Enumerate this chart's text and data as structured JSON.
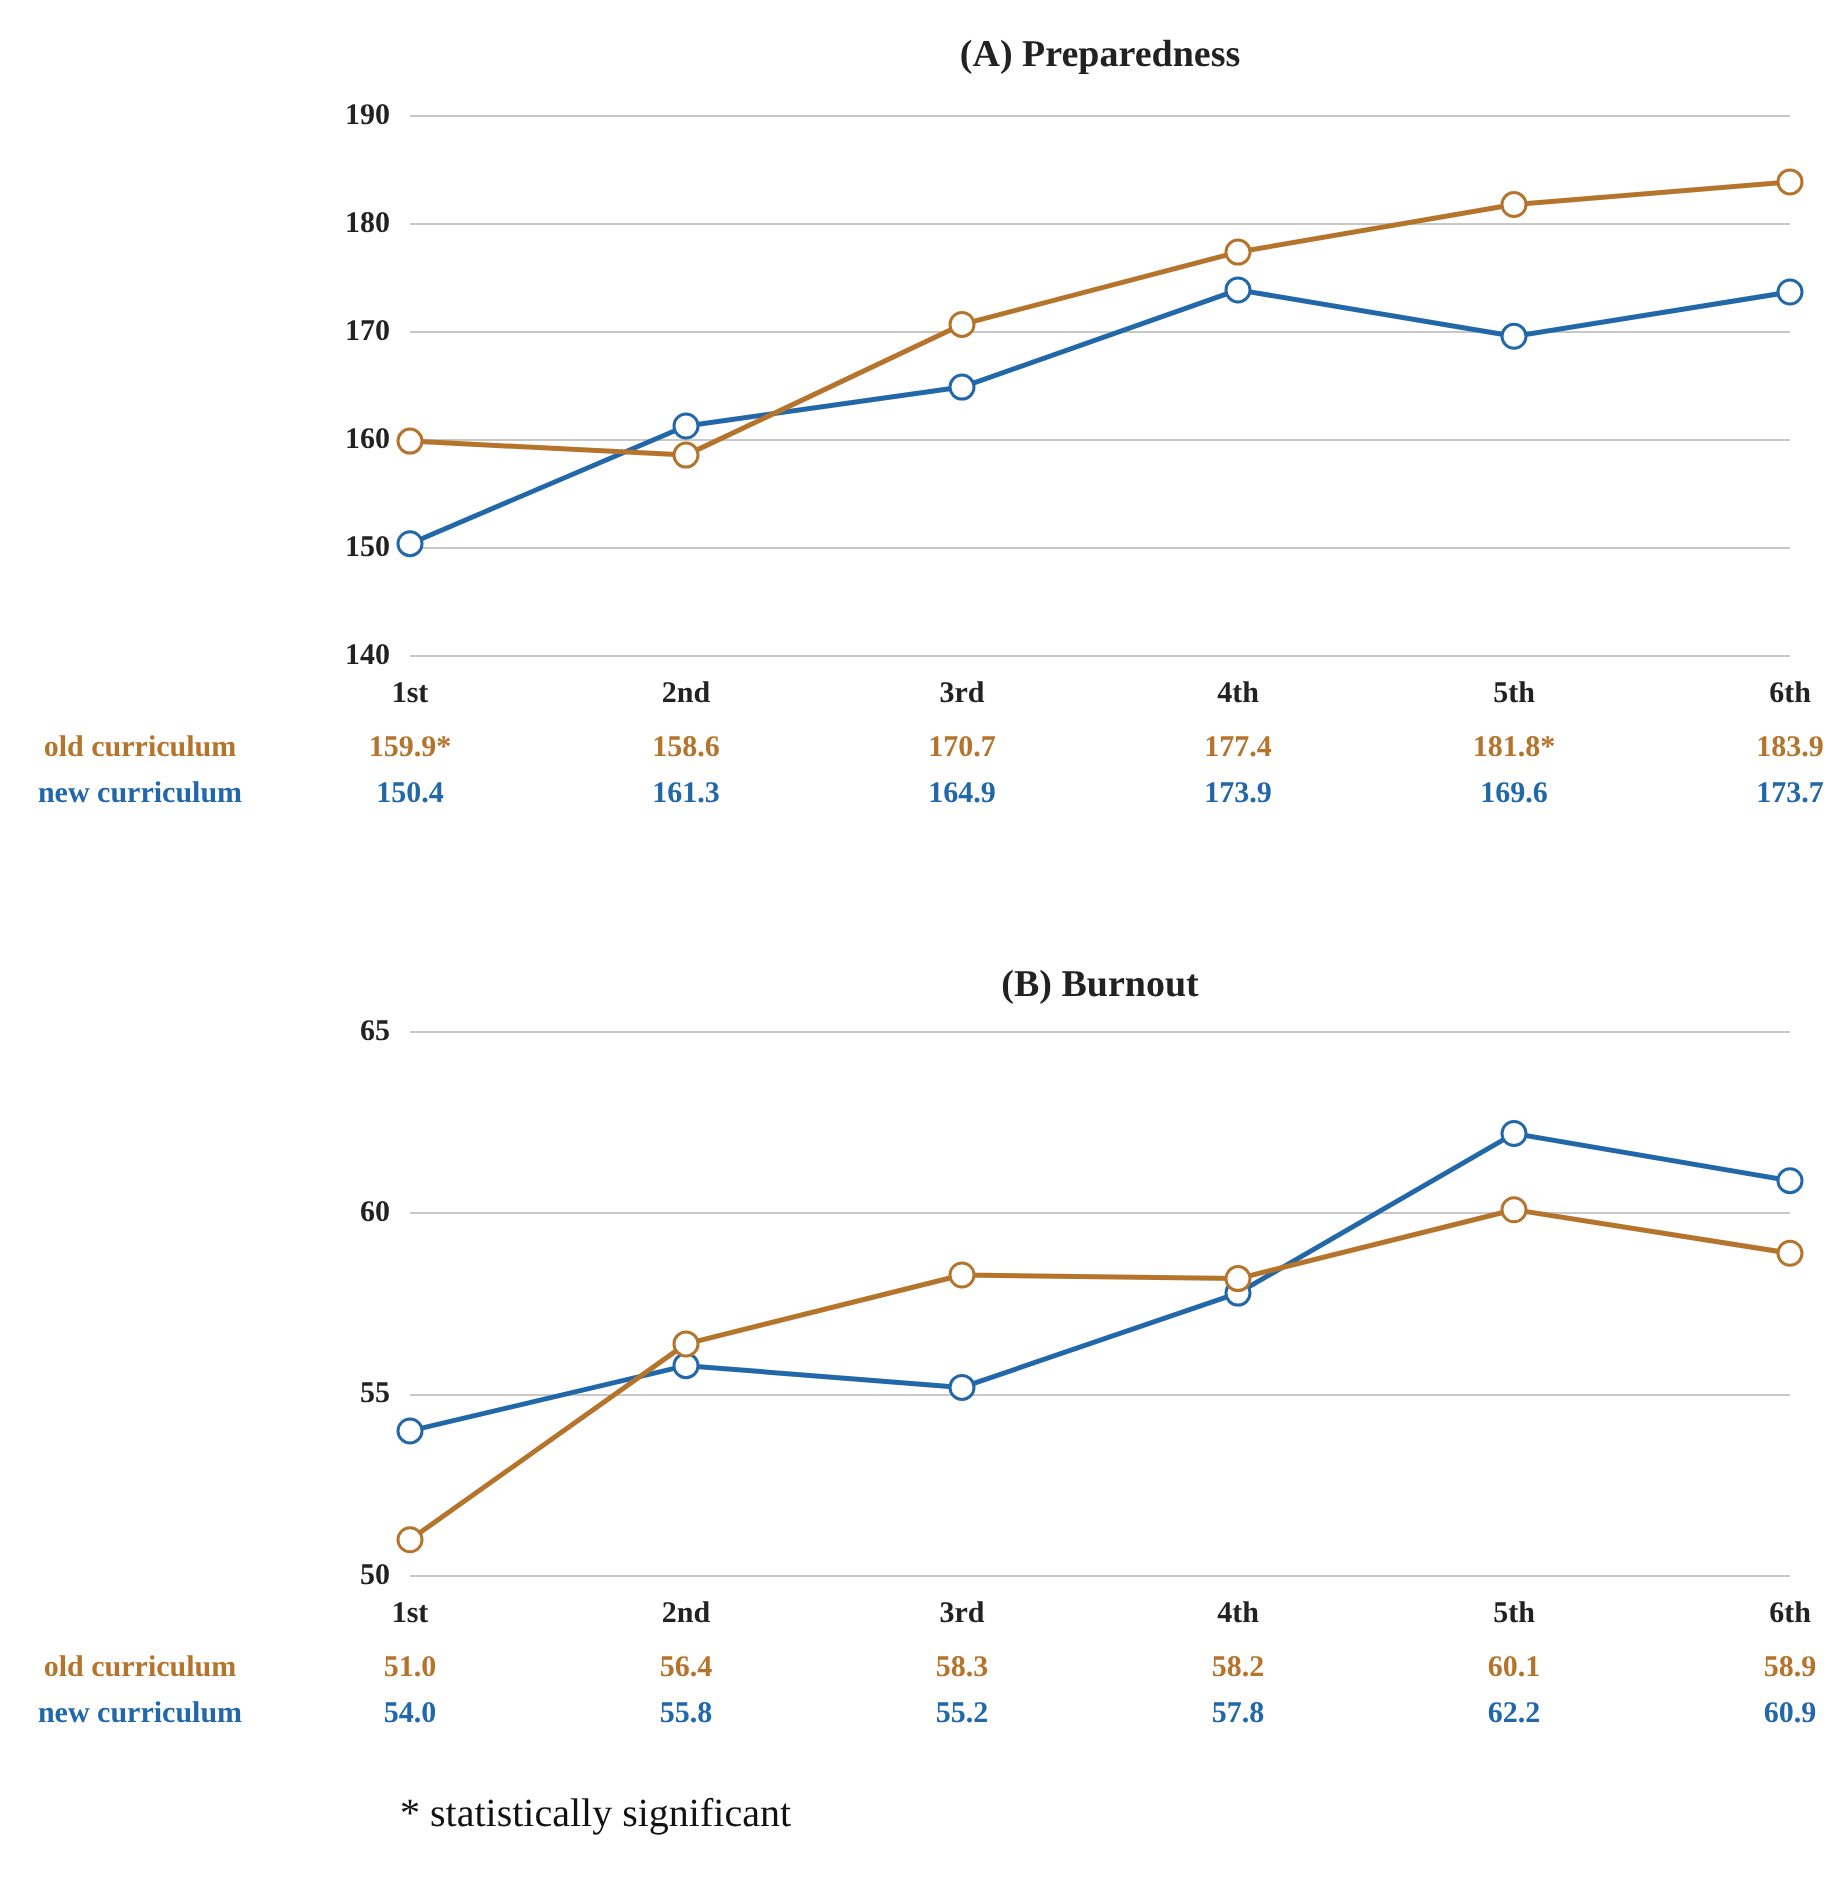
{
  "chart_data": [
    {
      "type": "line",
      "title": "(A) Preparedness",
      "categories": [
        "1st",
        "2nd",
        "3rd",
        "4th",
        "5th",
        "6th"
      ],
      "ylim": [
        140,
        190
      ],
      "yticks": [
        140,
        150,
        160,
        170,
        180,
        190
      ],
      "grid": "y",
      "marker": "circle",
      "series": [
        {
          "name": "old curriculum",
          "color": "#b5742c",
          "values": [
            159.9,
            158.6,
            170.7,
            177.4,
            181.8,
            183.9
          ],
          "value_labels": [
            "159.9*",
            "158.6",
            "170.7",
            "177.4",
            "181.8*",
            "183.9"
          ]
        },
        {
          "name": "new curriculum",
          "color": "#2268a8",
          "values": [
            150.4,
            161.3,
            164.9,
            173.9,
            169.6,
            173.7
          ],
          "value_labels": [
            "150.4",
            "161.3",
            "164.9",
            "173.9",
            "169.6",
            "173.7"
          ]
        }
      ]
    },
    {
      "type": "line",
      "title": "(B) Burnout",
      "categories": [
        "1st",
        "2nd",
        "3rd",
        "4th",
        "5th",
        "6th"
      ],
      "ylim": [
        50,
        65
      ],
      "yticks": [
        50,
        55,
        60,
        65
      ],
      "grid": "y",
      "marker": "circle",
      "annotations": [
        "* statistically significant"
      ],
      "series": [
        {
          "name": "old curriculum",
          "color": "#b5742c",
          "values": [
            51.0,
            56.4,
            58.3,
            58.2,
            60.1,
            58.9
          ],
          "value_labels": [
            "51.0",
            "56.4",
            "58.3",
            "58.2",
            "60.1",
            "58.9"
          ]
        },
        {
          "name": "new curriculum",
          "color": "#2268a8",
          "values": [
            54.0,
            55.8,
            55.2,
            57.8,
            62.2,
            60.9
          ],
          "value_labels": [
            "54.0",
            "55.8",
            "55.2",
            "57.8",
            "62.2",
            "60.9"
          ]
        }
      ]
    }
  ]
}
